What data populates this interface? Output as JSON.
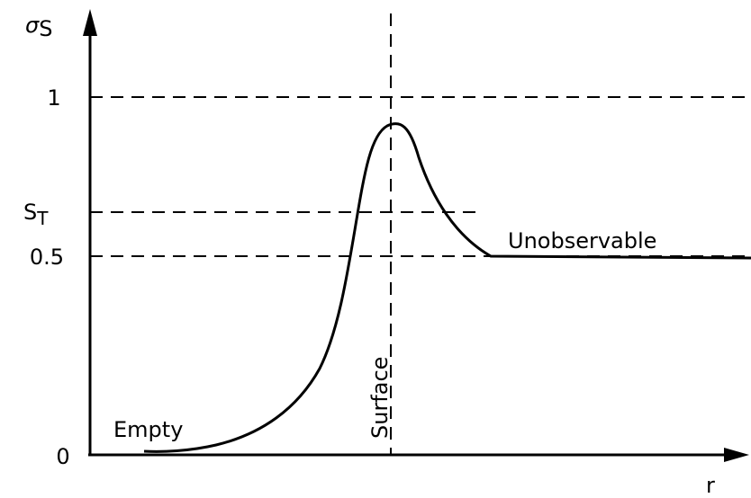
{
  "axes": {
    "y_label": {
      "symbol": "σ",
      "subscript": "S"
    },
    "x_label": "r"
  },
  "levels": [
    {
      "label": "1"
    },
    {
      "label": {
        "symbol": "S",
        "subscript": "T"
      }
    },
    {
      "label": "0.5"
    },
    {
      "label": "0"
    }
  ],
  "annotations": {
    "empty": "Empty",
    "surface": "Surface",
    "unobservable": "Unobservable"
  }
}
